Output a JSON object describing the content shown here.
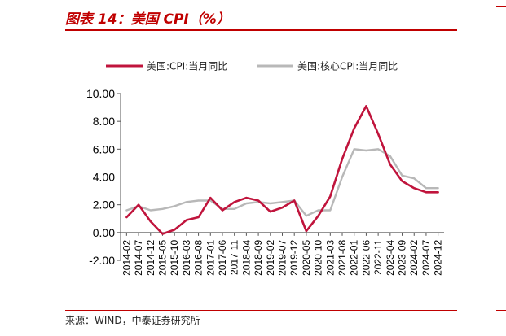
{
  "header": {
    "title": "图表 14：美国 CPI（%）"
  },
  "footer": {
    "source": "来源：WIND，中泰证券研究所"
  },
  "chart_data": {
    "type": "line",
    "title": "",
    "xlabel": "",
    "ylabel": "",
    "ylim": [
      -2.0,
      10.0
    ],
    "yticks": [
      "10.00",
      "8.00",
      "6.00",
      "4.00",
      "2.00",
      "0.00",
      "-2.00"
    ],
    "grid": false,
    "legend_position": "top",
    "x_tick_labels": [
      "2014-02",
      "2014-07",
      "2014-12",
      "2015-05",
      "2015-10",
      "2016-03",
      "2016-08",
      "2017-01",
      "2017-06",
      "2017-11",
      "2018-04",
      "2018-09",
      "2019-02",
      "2019-07",
      "2019-12",
      "2020-05",
      "2020-10",
      "2021-03",
      "2021-08",
      "2022-01",
      "2022-06",
      "2022-11",
      "2023-04",
      "2023-09",
      "2024-02",
      "2024-07",
      "2024-12"
    ],
    "x": [
      "2014-02",
      "2014-07",
      "2014-12",
      "2015-05",
      "2015-10",
      "2016-03",
      "2016-08",
      "2017-01",
      "2017-06",
      "2017-11",
      "2018-04",
      "2018-09",
      "2019-02",
      "2019-07",
      "2019-12",
      "2020-05",
      "2020-10",
      "2021-03",
      "2021-08",
      "2022-01",
      "2022-06",
      "2022-11",
      "2023-04",
      "2023-09",
      "2024-02",
      "2024-07",
      "2024-12"
    ],
    "series": [
      {
        "name": "美国:CPI:当月同比",
        "color": "#c0143c",
        "values": [
          1.1,
          2.0,
          0.8,
          -0.1,
          0.2,
          0.9,
          1.1,
          2.5,
          1.6,
          2.2,
          2.5,
          2.3,
          1.5,
          1.8,
          2.3,
          0.1,
          1.2,
          2.6,
          5.3,
          7.5,
          9.1,
          7.1,
          4.9,
          3.7,
          3.2,
          2.9,
          2.9
        ]
      },
      {
        "name": "美国:核心CPI:当月同比",
        "color": "#b8b8b8",
        "values": [
          1.6,
          1.9,
          1.6,
          1.7,
          1.9,
          2.2,
          2.3,
          2.3,
          1.7,
          1.7,
          2.1,
          2.2,
          2.1,
          2.2,
          2.3,
          1.2,
          1.6,
          1.6,
          4.0,
          6.0,
          5.9,
          6.0,
          5.5,
          4.1,
          3.9,
          3.2,
          3.2
        ]
      }
    ]
  }
}
